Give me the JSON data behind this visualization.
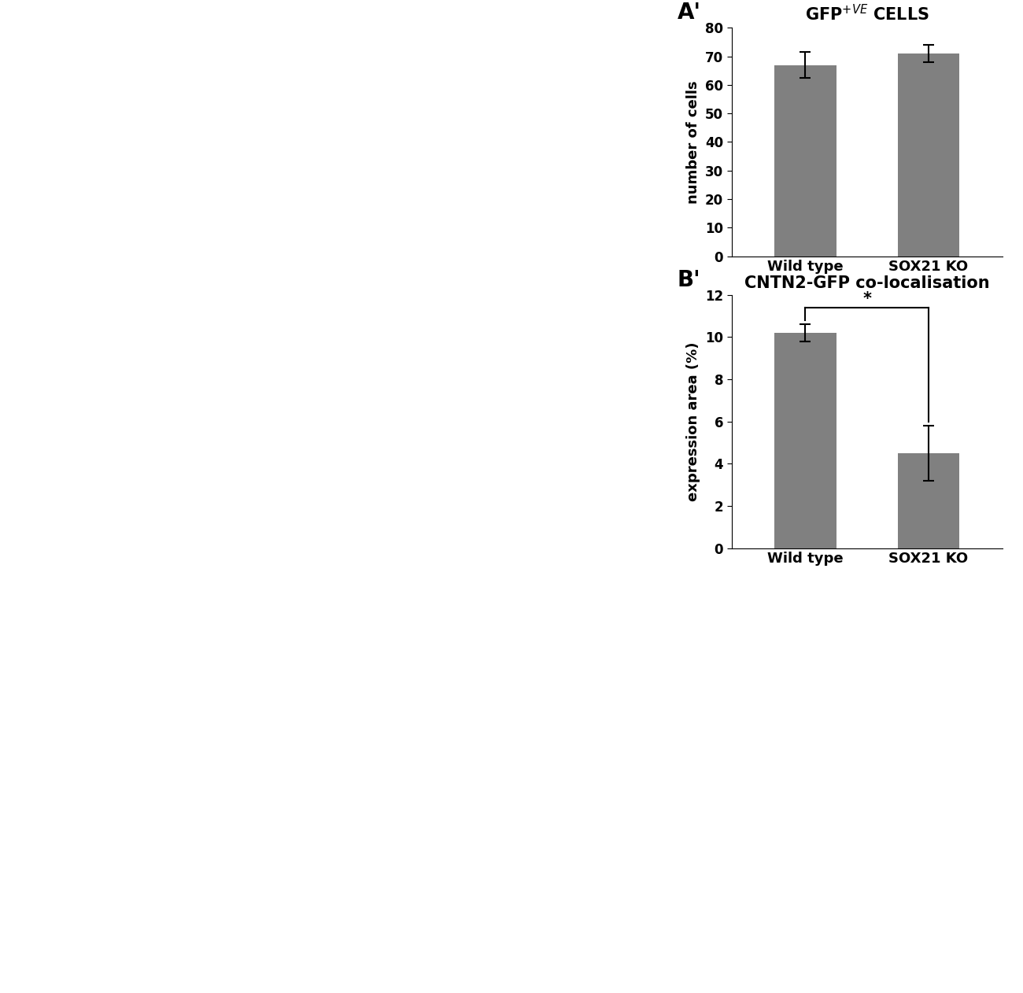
{
  "chartA_title": "GFP$^{+VE}$ CELLS",
  "chartA_categories": [
    "Wild type",
    "SOX21 KO"
  ],
  "chartA_values": [
    67.0,
    71.0
  ],
  "chartA_errors": [
    4.5,
    3.0
  ],
  "chartA_ylabel": "number of cells",
  "chartA_ylim": [
    0,
    80
  ],
  "chartA_yticks": [
    0,
    10,
    20,
    30,
    40,
    50,
    60,
    70,
    80
  ],
  "chartA_label": "A'",
  "chartB_title": "CNTN2-GFP co-localisation",
  "chartB_categories": [
    "Wild type",
    "SOX21 KO"
  ],
  "chartB_values": [
    10.2,
    4.5
  ],
  "chartB_errors": [
    0.4,
    1.3
  ],
  "chartB_ylabel": "expression area (%)",
  "chartB_ylim": [
    0,
    12
  ],
  "chartB_yticks": [
    0,
    2,
    4,
    6,
    8,
    10,
    12
  ],
  "chartB_label": "B'",
  "chartB_sig_label": "*",
  "bar_color": "#808080",
  "bar_width": 0.5,
  "background_color": "#ffffff",
  "title_fontsize": 15,
  "label_fontsize": 13,
  "tick_fontsize": 12,
  "panel_label_fontsize": 20
}
